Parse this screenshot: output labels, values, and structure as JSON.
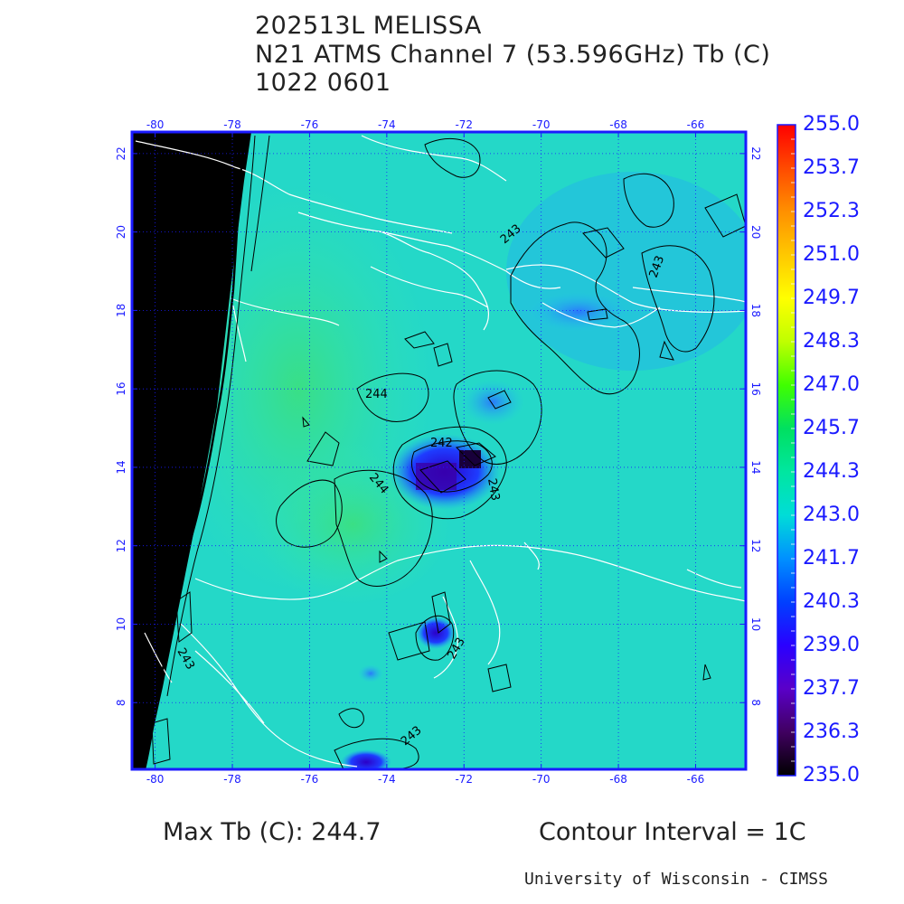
{
  "header": {
    "line1": "202513L MELISSA",
    "line2": "N21 ATMS Channel 7 (53.596GHz) Tb (C)",
    "line3": "1022 0601"
  },
  "map": {
    "lon_labels": [
      "-80",
      "-78",
      "-76",
      "-74",
      "-72",
      "-70",
      "-68",
      "-66"
    ],
    "lat_labels": [
      "8",
      "10",
      "12",
      "14",
      "16",
      "18",
      "20",
      "22"
    ],
    "contour_labels": [
      "244",
      "243",
      "242",
      "243",
      "244",
      "243",
      "243",
      "243",
      "243"
    ]
  },
  "colorbar": {
    "labels": [
      "255.0",
      "253.7",
      "252.3",
      "251.0",
      "249.7",
      "248.3",
      "247.0",
      "245.7",
      "244.3",
      "243.0",
      "241.7",
      "240.3",
      "239.0",
      "237.7",
      "236.3",
      "235.0"
    ],
    "colors": [
      "#ff0000",
      "#ff4a00",
      "#ff9000",
      "#ffc800",
      "#ffff00",
      "#bfff00",
      "#40ff00",
      "#00e060",
      "#00e6a0",
      "#00ddd8",
      "#0090ff",
      "#0040ff",
      "#2a00ff",
      "#5a00c8",
      "#400060",
      "#000000"
    ]
  },
  "footer": {
    "max_tb": "Max Tb (C): 244.7",
    "contour_interval": "Contour Interval = 1C",
    "credit": "University of Wisconsin - CIMSS"
  }
}
